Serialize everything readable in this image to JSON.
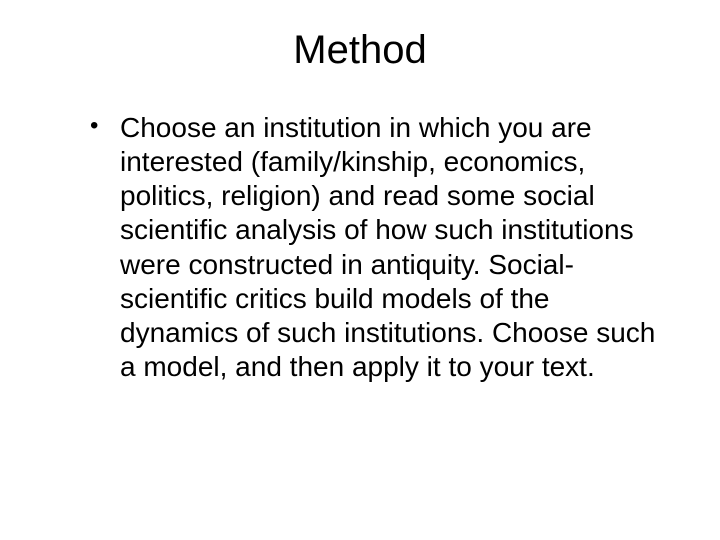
{
  "slide": {
    "title": "Method",
    "bullets": [
      "Choose an institution in which you are interested (family/kinship, economics, politics, religion) and read some social scientific analysis of how such institutions were constructed in antiquity. Social-scientific critics build models of the dynamics of such institutions.  Choose such a model, and then apply it to your text."
    ],
    "styling": {
      "background_color": "#ffffff",
      "text_color": "#000000",
      "title_fontsize": 40,
      "body_fontsize": 28,
      "font_family": "Arial",
      "title_align": "center",
      "bullet_marker": "•",
      "line_height": 1.22
    }
  }
}
